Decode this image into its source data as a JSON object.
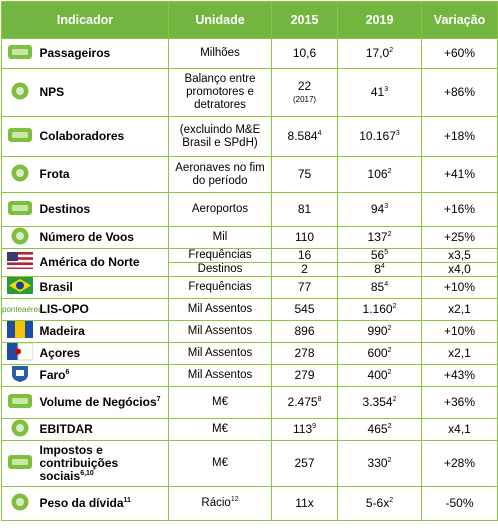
{
  "header": [
    "Indicador",
    "Unidade",
    "2015",
    "2019",
    "Variação"
  ],
  "rows": [
    {
      "indicator": {
        "text": "Passageiros"
      },
      "lines": [
        [
          {
            "text": "Milhões"
          },
          {
            "text": "10,6"
          },
          {
            "text": "17,0",
            "sup": "2"
          },
          {
            "text": "+60%"
          }
        ]
      ]
    },
    {
      "indicator": {
        "text": "NPS"
      },
      "lines": [
        [
          {
            "text": "Balanço entre promotores e detratores"
          },
          {
            "text": "22",
            "note": "(2017)"
          },
          {
            "text": "41",
            "sup": "3"
          },
          {
            "text": "+86%"
          }
        ]
      ]
    },
    {
      "indicator": {
        "text": "Colaboradores"
      },
      "lines": [
        [
          {
            "text": "(excluindo M&E Brasil e SPdH)"
          },
          {
            "text": "8.584",
            "sup": "4"
          },
          {
            "text": "10.167",
            "sup": "3"
          },
          {
            "text": "+18%"
          }
        ]
      ]
    },
    {
      "indicator": {
        "text": "Frota"
      },
      "lines": [
        [
          {
            "text": "Aeronaves no fim do período"
          },
          {
            "text": "75"
          },
          {
            "text": "106",
            "sup": "2"
          },
          {
            "text": "+41%"
          }
        ]
      ]
    },
    {
      "indicator": {
        "text": "Destinos"
      },
      "lines": [
        [
          {
            "text": "Aeroportos"
          },
          {
            "text": "81"
          },
          {
            "text": "94",
            "sup": "3"
          },
          {
            "text": "+16%"
          }
        ]
      ]
    },
    {
      "indicator": {
        "text": "Número de Voos"
      },
      "lines": [
        [
          {
            "text": "Mil"
          },
          {
            "text": "110"
          },
          {
            "text": "137",
            "sup": "2"
          },
          {
            "text": "+25%"
          }
        ]
      ]
    },
    {
      "indicator": {
        "text": "América do Norte"
      },
      "lines": [
        [
          {
            "text": "Frequências"
          },
          {
            "text": "16"
          },
          {
            "text": "56",
            "sup": "5"
          },
          {
            "text": "x3,5"
          }
        ],
        [
          {
            "text": "Destinos"
          },
          {
            "text": "2"
          },
          {
            "text": "8",
            "sup": "4"
          },
          {
            "text": "x4,0"
          }
        ]
      ]
    },
    {
      "indicator": {
        "text": "Brasil"
      },
      "lines": [
        [
          {
            "text": "Frequências"
          },
          {
            "text": "77"
          },
          {
            "text": "85",
            "sup": "4"
          },
          {
            "text": "+10%"
          }
        ]
      ]
    },
    {
      "indicator": {
        "text": "LIS-OPO",
        "logo": "ponteaérea"
      },
      "lines": [
        [
          {
            "text": "Mil Assentos"
          },
          {
            "text": "545"
          },
          {
            "text": "1.160",
            "sup": "2"
          },
          {
            "text": "x2,1"
          }
        ]
      ]
    },
    {
      "indicator": {
        "text": "Madeira"
      },
      "lines": [
        [
          {
            "text": "Mil Assentos"
          },
          {
            "text": "896"
          },
          {
            "text": "990",
            "sup": "2"
          },
          {
            "text": "+10%"
          }
        ]
      ]
    },
    {
      "indicator": {
        "text": "Açores"
      },
      "lines": [
        [
          {
            "text": "Mil Assentos"
          },
          {
            "text": "278"
          },
          {
            "text": "600",
            "sup": "2"
          },
          {
            "text": "x2,1"
          }
        ]
      ]
    },
    {
      "indicator": {
        "text": "Faro",
        "sup": "6"
      },
      "lines": [
        [
          {
            "text": "Mil Assentos"
          },
          {
            "text": "279"
          },
          {
            "text": "400",
            "sup": "2"
          },
          {
            "text": "+43%"
          }
        ]
      ]
    },
    {
      "indicator": {
        "text": "Volume de Negócios",
        "sup": "7"
      },
      "lines": [
        [
          {
            "text": "M€"
          },
          {
            "text": "2.475",
            "sup": "8"
          },
          {
            "text": "3.354",
            "sup": "2"
          },
          {
            "text": "+36%"
          }
        ]
      ]
    },
    {
      "indicator": {
        "text": "EBITDAR"
      },
      "lines": [
        [
          {
            "text": "M€"
          },
          {
            "text": "113",
            "sup": "9"
          },
          {
            "text": "465",
            "sup": "2"
          },
          {
            "text": "x4,1"
          }
        ]
      ]
    },
    {
      "indicator": {
        "text": "Impostos e contribuições sociais",
        "sup": "6,10"
      },
      "lines": [
        [
          {
            "text": "M€"
          },
          {
            "text": "257"
          },
          {
            "text": "330",
            "sup": "2"
          },
          {
            "text": "+28%"
          }
        ]
      ]
    },
    {
      "indicator": {
        "text": "Peso da dívida",
        "sup": "11"
      },
      "lines": [
        [
          {
            "text": "Rácio",
            "sup": "12"
          },
          {
            "text": "11x"
          },
          {
            "text": "5-6x",
            "sup": "2"
          },
          {
            "text": "-50%"
          }
        ]
      ]
    }
  ]
}
